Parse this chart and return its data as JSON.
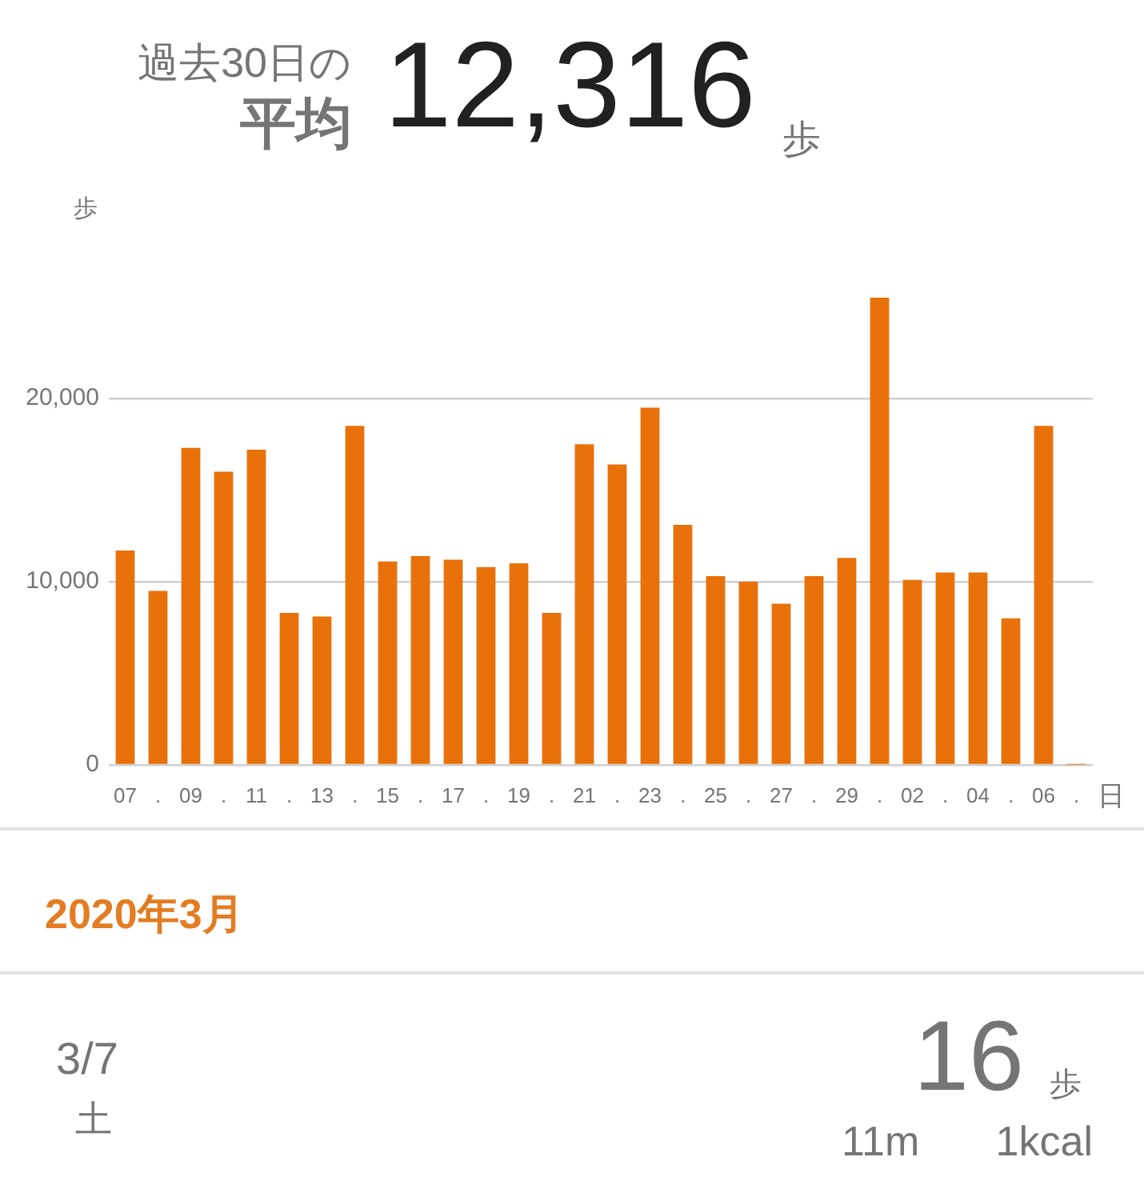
{
  "chart_data": {
    "type": "bar",
    "categories": [
      "07",
      ".",
      "09",
      ".",
      "11",
      ".",
      "13",
      ".",
      "15",
      ".",
      "17",
      ".",
      "19",
      ".",
      "21",
      ".",
      "23",
      ".",
      "25",
      ".",
      "27",
      ".",
      "29",
      ".",
      "02",
      ".",
      "04",
      ".",
      "06",
      "."
    ],
    "values": [
      11700,
      9500,
      17300,
      16000,
      17200,
      8300,
      8100,
      18500,
      11100,
      11400,
      11200,
      10800,
      11000,
      8300,
      17500,
      16400,
      19500,
      13100,
      10300,
      10000,
      8800,
      10300,
      11300,
      25500,
      10100,
      10500,
      10500,
      8000,
      18500,
      16
    ],
    "color": "#e8710a",
    "ylim": [
      0,
      25500
    ],
    "yticks": [
      0,
      {
        "value": 10000,
        "label": "10,000"
      },
      {
        "value": 20000,
        "label": "20,000"
      }
    ],
    "ylabel": "歩",
    "xlabel": "日",
    "grid": "y",
    "annotations": [
      "過去30日の",
      "平均",
      "12,316",
      "歩",
      "2020年3月",
      "3/7",
      "土",
      "16",
      "歩",
      "11m",
      "1kcal"
    ]
  }
}
